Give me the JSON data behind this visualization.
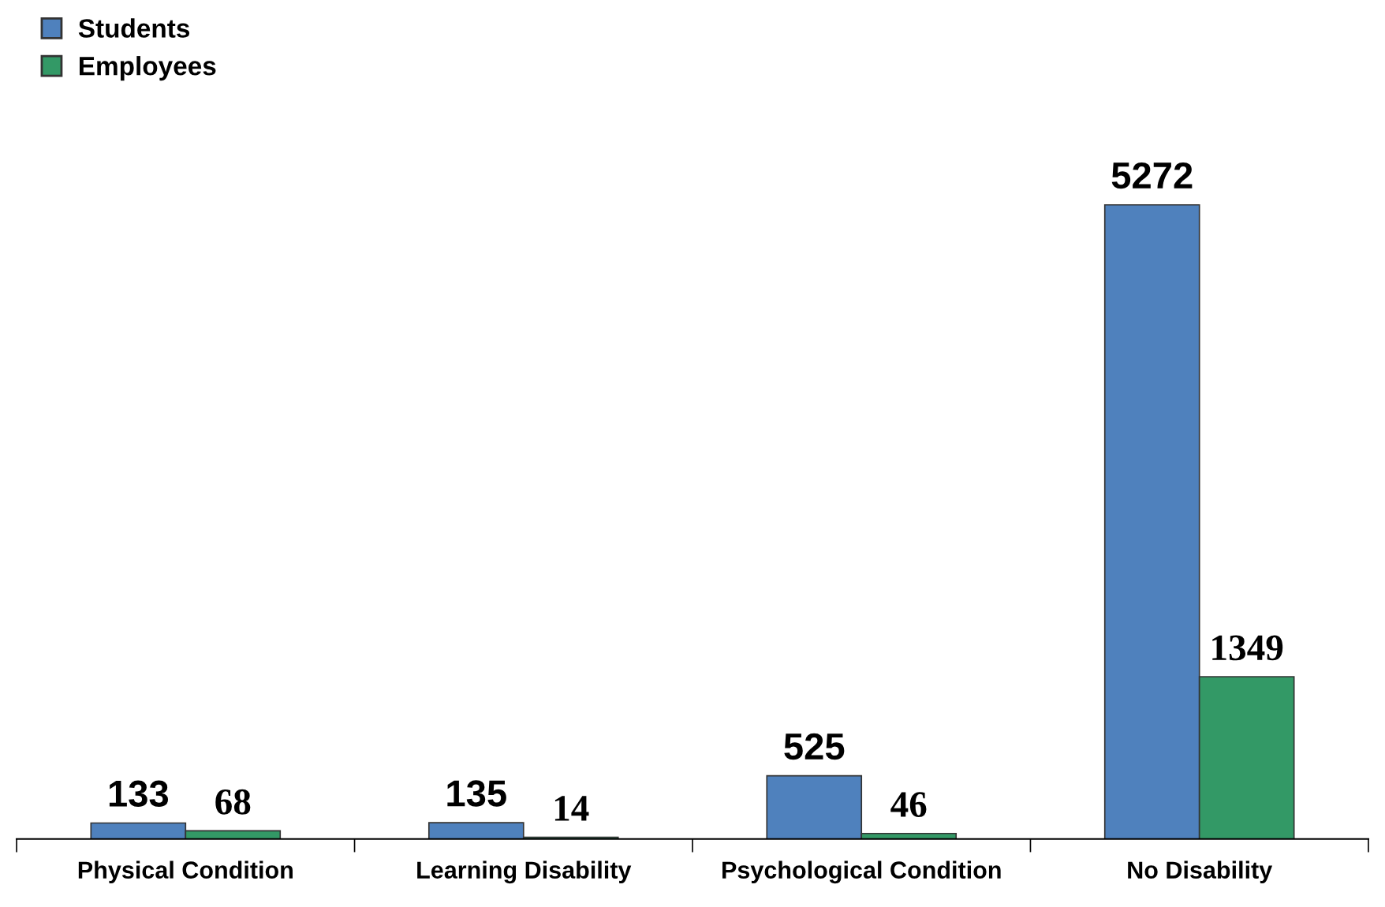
{
  "chart_data": {
    "type": "bar",
    "categories": [
      "Physical Condition",
      "Learning Disability",
      "Psychological Condition",
      "No Disability"
    ],
    "series": [
      {
        "name": "Students",
        "color": "#4f81bd",
        "values": [
          133,
          135,
          525,
          5272
        ]
      },
      {
        "name": "Employees",
        "color": "#339966",
        "values": [
          68,
          14,
          46,
          1349
        ]
      }
    ],
    "data_labels": true,
    "legend": "top left",
    "grid": false
  }
}
